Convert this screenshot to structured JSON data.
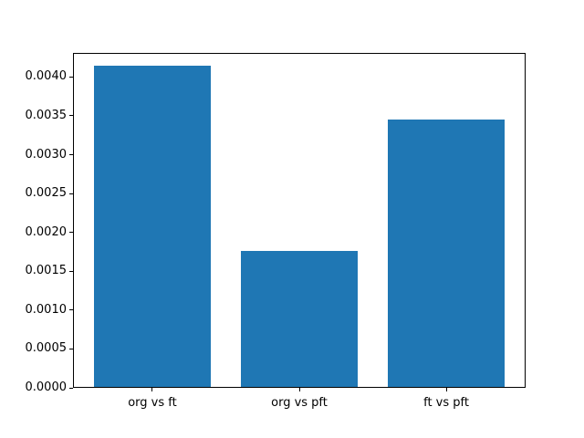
{
  "figure": {
    "background": "#ffffff",
    "title": ""
  },
  "chart_data": {
    "type": "bar",
    "categories": [
      "org vs ft",
      "org vs pft",
      "ft vs pft"
    ],
    "values": [
      0.00413,
      0.00175,
      0.00344
    ],
    "title": "",
    "xlabel": "",
    "ylabel": "",
    "ylim": [
      0,
      0.00431
    ],
    "xlim": [
      -0.54,
      2.54
    ],
    "bar_width": 0.8,
    "yticks": [
      0.0,
      0.0005,
      0.001,
      0.0015,
      0.002,
      0.0025,
      0.003,
      0.0035,
      0.004
    ],
    "ytick_labels": [
      "0.0000",
      "0.0005",
      "0.0010",
      "0.0015",
      "0.0020",
      "0.0025",
      "0.0030",
      "0.0035",
      "0.0040"
    ],
    "bar_color": "#1f77b4",
    "axis_color": "#000000",
    "text_color": "#000000",
    "grid": false,
    "legend": null
  }
}
